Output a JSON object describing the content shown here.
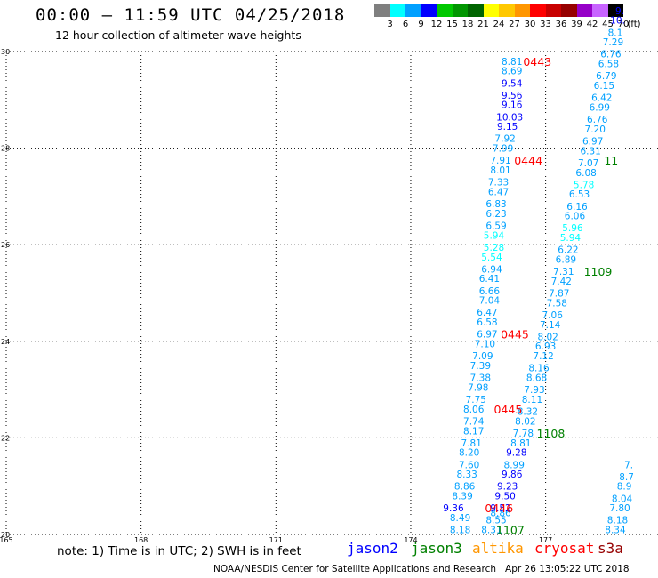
{
  "title": "00:00 – 11:59 UTC 04/25/2018",
  "subtitle": "12 hour collection of altimeter wave heights",
  "legend": {
    "unit": "(ft)",
    "bins": [
      {
        "label": "3",
        "color": "#7f7f7f"
      },
      {
        "label": "6",
        "color": "#00ffff"
      },
      {
        "label": "9",
        "color": "#00a0ff"
      },
      {
        "label": "12",
        "color": "#0000ff"
      },
      {
        "label": "15",
        "color": "#00c800"
      },
      {
        "label": "18",
        "color": "#009600"
      },
      {
        "label": "21",
        "color": "#006400"
      },
      {
        "label": "24",
        "color": "#ffff00"
      },
      {
        "label": "27",
        "color": "#ffc800"
      },
      {
        "label": "30",
        "color": "#ff9600"
      },
      {
        "label": "33",
        "color": "#ff0000"
      },
      {
        "label": "36",
        "color": "#c80000"
      },
      {
        "label": "39",
        "color": "#960000"
      },
      {
        "label": "42",
        "color": "#9600c8"
      },
      {
        "label": "45",
        "color": "#c864ff"
      },
      {
        "label": "70",
        "color": "#000000"
      }
    ]
  },
  "note": "note: 1) Time is in UTC; 2) SWH is in feet",
  "satellites": [
    {
      "name": "jason2",
      "color": "#0000ff"
    },
    {
      "name": "jason3",
      "color": "#008000"
    },
    {
      "name": "altika",
      "color": "#ff9600"
    },
    {
      "name": "cryosat",
      "color": "#ff0000"
    },
    {
      "name": "s3a",
      "color": "#960000"
    }
  ],
  "footer": "NOAA/NESDIS Center for Satellite Applications and Research   Apr 26 13:05:22 UTC 2018",
  "chart_data": {
    "type": "scatter",
    "xlim": [
      165,
      179.5
    ],
    "ylim": [
      20,
      30
    ],
    "x_ticks": [
      "165",
      "168",
      "171",
      "174",
      "177"
    ],
    "y_ticks": [
      "30",
      "28",
      "26",
      "24",
      "22",
      "20"
    ],
    "grid": true,
    "points": [
      {
        "lon": 176.25,
        "lat": 29.8,
        "value": "8.81",
        "color": "#00a0ff"
      },
      {
        "lon": 176.25,
        "lat": 29.6,
        "value": "8.69",
        "color": "#00a0ff"
      },
      {
        "lon": 176.25,
        "lat": 29.35,
        "value": "9.54",
        "color": "#0000ff"
      },
      {
        "lon": 176.25,
        "lat": 29.1,
        "value": "9.56",
        "color": "#0000ff"
      },
      {
        "lon": 176.25,
        "lat": 28.9,
        "value": "9.16",
        "color": "#0000ff"
      },
      {
        "lon": 176.2,
        "lat": 28.65,
        "value": "10.03",
        "color": "#0000ff"
      },
      {
        "lon": 176.15,
        "lat": 28.45,
        "value": "9.15",
        "color": "#0000ff"
      },
      {
        "lon": 176.1,
        "lat": 28.2,
        "value": "7.92",
        "color": "#00a0ff"
      },
      {
        "lon": 176.05,
        "lat": 28.0,
        "value": "7.99",
        "color": "#00a0ff"
      },
      {
        "lon": 176.0,
        "lat": 27.75,
        "value": "7.91",
        "color": "#00a0ff"
      },
      {
        "lon": 176.0,
        "lat": 27.55,
        "value": "8.01",
        "color": "#00a0ff"
      },
      {
        "lon": 175.95,
        "lat": 27.3,
        "value": "7.33",
        "color": "#00a0ff"
      },
      {
        "lon": 175.95,
        "lat": 27.1,
        "value": "6.47",
        "color": "#00a0ff"
      },
      {
        "lon": 175.9,
        "lat": 26.85,
        "value": "6.83",
        "color": "#00a0ff"
      },
      {
        "lon": 175.9,
        "lat": 26.65,
        "value": "6.23",
        "color": "#00a0ff"
      },
      {
        "lon": 175.9,
        "lat": 26.4,
        "value": "6.59",
        "color": "#00a0ff"
      },
      {
        "lon": 175.85,
        "lat": 26.2,
        "value": "5.94",
        "color": "#00ffff"
      },
      {
        "lon": 175.85,
        "lat": 25.95,
        "value": "5.28",
        "color": "#00ffff"
      },
      {
        "lon": 175.8,
        "lat": 25.75,
        "value": "5.54",
        "color": "#00ffff"
      },
      {
        "lon": 175.8,
        "lat": 25.5,
        "value": "6.94",
        "color": "#00a0ff"
      },
      {
        "lon": 175.75,
        "lat": 25.3,
        "value": "6.41",
        "color": "#00a0ff"
      },
      {
        "lon": 175.75,
        "lat": 25.05,
        "value": "6.66",
        "color": "#00a0ff"
      },
      {
        "lon": 175.75,
        "lat": 24.85,
        "value": "7.04",
        "color": "#00a0ff"
      },
      {
        "lon": 175.7,
        "lat": 24.6,
        "value": "6.47",
        "color": "#00a0ff"
      },
      {
        "lon": 175.7,
        "lat": 24.4,
        "value": "6.58",
        "color": "#00a0ff"
      },
      {
        "lon": 175.7,
        "lat": 24.15,
        "value": "6.97",
        "color": "#00a0ff"
      },
      {
        "lon": 175.65,
        "lat": 23.95,
        "value": "7.10",
        "color": "#00a0ff"
      },
      {
        "lon": 175.6,
        "lat": 23.7,
        "value": "7.09",
        "color": "#00a0ff"
      },
      {
        "lon": 175.55,
        "lat": 23.5,
        "value": "7.39",
        "color": "#00a0ff"
      },
      {
        "lon": 175.55,
        "lat": 23.25,
        "value": "7.38",
        "color": "#00a0ff"
      },
      {
        "lon": 175.5,
        "lat": 23.05,
        "value": "7.98",
        "color": "#00a0ff"
      },
      {
        "lon": 175.45,
        "lat": 22.8,
        "value": "7.75",
        "color": "#00a0ff"
      },
      {
        "lon": 175.4,
        "lat": 22.6,
        "value": "8.06",
        "color": "#00a0ff"
      },
      {
        "lon": 175.4,
        "lat": 22.35,
        "value": "7.74",
        "color": "#00a0ff"
      },
      {
        "lon": 175.4,
        "lat": 22.15,
        "value": "8.17",
        "color": "#00a0ff"
      },
      {
        "lon": 175.35,
        "lat": 21.9,
        "value": "7.81",
        "color": "#00a0ff"
      },
      {
        "lon": 175.3,
        "lat": 21.7,
        "value": "8.20",
        "color": "#00a0ff"
      },
      {
        "lon": 175.3,
        "lat": 21.45,
        "value": "7.60",
        "color": "#00a0ff"
      },
      {
        "lon": 175.25,
        "lat": 21.25,
        "value": "8.33",
        "color": "#00a0ff"
      },
      {
        "lon": 175.2,
        "lat": 21.0,
        "value": "8.86",
        "color": "#00a0ff"
      },
      {
        "lon": 175.15,
        "lat": 20.8,
        "value": "8.39",
        "color": "#00a0ff"
      },
      {
        "lon": 174.95,
        "lat": 20.55,
        "value": "9.36",
        "color": "#0000ff"
      },
      {
        "lon": 175.1,
        "lat": 20.35,
        "value": "8.49",
        "color": "#00a0ff"
      },
      {
        "lon": 175.1,
        "lat": 20.1,
        "value": "8.18",
        "color": "#00a0ff"
      },
      {
        "lon": 175.8,
        "lat": 20.1,
        "value": "8.31",
        "color": "#00a0ff"
      },
      {
        "lon": 175.9,
        "lat": 20.3,
        "value": "8.55",
        "color": "#00a0ff"
      },
      {
        "lon": 176.0,
        "lat": 20.45,
        "value": "8.86",
        "color": "#00a0ff"
      },
      {
        "lon": 176.0,
        "lat": 20.55,
        "value": "9.52",
        "color": "#0000ff"
      },
      {
        "lon": 176.1,
        "lat": 20.8,
        "value": "9.50",
        "color": "#0000ff"
      },
      {
        "lon": 176.15,
        "lat": 21.0,
        "value": "9.23",
        "color": "#0000ff"
      },
      {
        "lon": 176.25,
        "lat": 21.25,
        "value": "9.86",
        "color": "#0000ff"
      },
      {
        "lon": 176.3,
        "lat": 21.45,
        "value": "8.99",
        "color": "#00a0ff"
      },
      {
        "lon": 176.35,
        "lat": 21.7,
        "value": "9.28",
        "color": "#0000ff"
      },
      {
        "lon": 176.45,
        "lat": 21.9,
        "value": "8.81",
        "color": "#00a0ff"
      },
      {
        "lon": 176.5,
        "lat": 22.1,
        "value": "7.78",
        "color": "#00a0ff"
      },
      {
        "lon": 176.55,
        "lat": 22.35,
        "value": "8.02",
        "color": "#00a0ff"
      },
      {
        "lon": 176.6,
        "lat": 22.55,
        "value": "8.32",
        "color": "#00a0ff"
      },
      {
        "lon": 176.7,
        "lat": 22.8,
        "value": "8.11",
        "color": "#00a0ff"
      },
      {
        "lon": 176.75,
        "lat": 23.0,
        "value": "7.93",
        "color": "#00a0ff"
      },
      {
        "lon": 176.8,
        "lat": 23.25,
        "value": "8.68",
        "color": "#00a0ff"
      },
      {
        "lon": 176.85,
        "lat": 23.45,
        "value": "8.16",
        "color": "#00a0ff"
      },
      {
        "lon": 176.95,
        "lat": 23.7,
        "value": "7.12",
        "color": "#00a0ff"
      },
      {
        "lon": 177.0,
        "lat": 23.9,
        "value": "6.93",
        "color": "#00a0ff"
      },
      {
        "lon": 177.05,
        "lat": 24.1,
        "value": "8.02",
        "color": "#00a0ff"
      },
      {
        "lon": 177.1,
        "lat": 24.35,
        "value": "7.14",
        "color": "#00a0ff"
      },
      {
        "lon": 177.15,
        "lat": 24.55,
        "value": "7.06",
        "color": "#00a0ff"
      },
      {
        "lon": 177.25,
        "lat": 24.8,
        "value": "7.58",
        "color": "#00a0ff"
      },
      {
        "lon": 177.3,
        "lat": 25.0,
        "value": "7.87",
        "color": "#00a0ff"
      },
      {
        "lon": 177.35,
        "lat": 25.25,
        "value": "7.42",
        "color": "#00a0ff"
      },
      {
        "lon": 177.4,
        "lat": 25.45,
        "value": "7.31",
        "color": "#00a0ff"
      },
      {
        "lon": 177.45,
        "lat": 25.7,
        "value": "6.89",
        "color": "#00a0ff"
      },
      {
        "lon": 177.5,
        "lat": 25.9,
        "value": "6.22",
        "color": "#00a0ff"
      },
      {
        "lon": 177.55,
        "lat": 26.15,
        "value": "5.94",
        "color": "#00ffff"
      },
      {
        "lon": 177.6,
        "lat": 26.35,
        "value": "5.96",
        "color": "#00ffff"
      },
      {
        "lon": 177.65,
        "lat": 26.6,
        "value": "6.06",
        "color": "#00a0ff"
      },
      {
        "lon": 177.7,
        "lat": 26.8,
        "value": "6.16",
        "color": "#00a0ff"
      },
      {
        "lon": 177.75,
        "lat": 27.05,
        "value": "6.53",
        "color": "#00a0ff"
      },
      {
        "lon": 177.85,
        "lat": 27.25,
        "value": "5.78",
        "color": "#00ffff"
      },
      {
        "lon": 177.9,
        "lat": 27.5,
        "value": "6.08",
        "color": "#00a0ff"
      },
      {
        "lon": 177.95,
        "lat": 27.7,
        "value": "7.07",
        "color": "#00a0ff"
      },
      {
        "lon": 178.0,
        "lat": 27.95,
        "value": "6.31",
        "color": "#00a0ff"
      },
      {
        "lon": 178.05,
        "lat": 28.15,
        "value": "6.97",
        "color": "#00a0ff"
      },
      {
        "lon": 178.1,
        "lat": 28.4,
        "value": "7.20",
        "color": "#00a0ff"
      },
      {
        "lon": 178.15,
        "lat": 28.6,
        "value": "6.76",
        "color": "#00a0ff"
      },
      {
        "lon": 178.2,
        "lat": 28.85,
        "value": "6.99",
        "color": "#00a0ff"
      },
      {
        "lon": 178.25,
        "lat": 29.05,
        "value": "6.42",
        "color": "#00a0ff"
      },
      {
        "lon": 178.3,
        "lat": 29.3,
        "value": "6.15",
        "color": "#00a0ff"
      },
      {
        "lon": 178.35,
        "lat": 29.5,
        "value": "6.79",
        "color": "#00a0ff"
      },
      {
        "lon": 178.4,
        "lat": 29.75,
        "value": "6.58",
        "color": "#00a0ff"
      },
      {
        "lon": 178.45,
        "lat": 29.95,
        "value": "6.76",
        "color": "#00a0ff"
      },
      {
        "lon": 178.5,
        "lat": 30.2,
        "value": "7.29",
        "color": "#00a0ff"
      },
      {
        "lon": 178.55,
        "lat": 30.4,
        "value": "8.1",
        "color": "#00a0ff"
      },
      {
        "lon": 178.6,
        "lat": 30.65,
        "value": "10.",
        "color": "#0000ff"
      },
      {
        "lon": 178.65,
        "lat": 30.85,
        "value": "9.",
        "color": "#0000ff"
      },
      {
        "lon": 178.55,
        "lat": 20.1,
        "value": "8.34",
        "color": "#00a0ff"
      },
      {
        "lon": 178.6,
        "lat": 20.3,
        "value": "8.18",
        "color": "#00a0ff"
      },
      {
        "lon": 178.65,
        "lat": 20.55,
        "value": "7.80",
        "color": "#00a0ff"
      },
      {
        "lon": 178.7,
        "lat": 20.75,
        "value": "8.04",
        "color": "#00a0ff"
      },
      {
        "lon": 178.75,
        "lat": 21.0,
        "value": "8.9",
        "color": "#00a0ff"
      },
      {
        "lon": 178.8,
        "lat": 21.2,
        "value": "8.7",
        "color": "#00a0ff"
      },
      {
        "lon": 178.85,
        "lat": 21.45,
        "value": "7.",
        "color": "#00a0ff"
      }
    ],
    "pass_times": [
      {
        "lon": 176.5,
        "lat": 29.8,
        "value": "0443",
        "color": "#ff0000"
      },
      {
        "lon": 176.3,
        "lat": 27.75,
        "value": "0444",
        "color": "#ff0000"
      },
      {
        "lon": 176.0,
        "lat": 24.15,
        "value": "0445",
        "color": "#ff0000"
      },
      {
        "lon": 175.85,
        "lat": 22.6,
        "value": "0445",
        "color": "#ff0000"
      },
      {
        "lon": 175.65,
        "lat": 20.55,
        "value": "0446",
        "color": "#ff0000"
      },
      {
        "lon": 178.3,
        "lat": 27.75,
        "value": "11",
        "color": "#008000"
      },
      {
        "lon": 177.85,
        "lat": 25.45,
        "value": "1109",
        "color": "#008000"
      },
      {
        "lon": 176.8,
        "lat": 22.1,
        "value": "1108",
        "color": "#008000"
      },
      {
        "lon": 175.9,
        "lat": 20.1,
        "value": "1107",
        "color": "#008000"
      }
    ]
  }
}
